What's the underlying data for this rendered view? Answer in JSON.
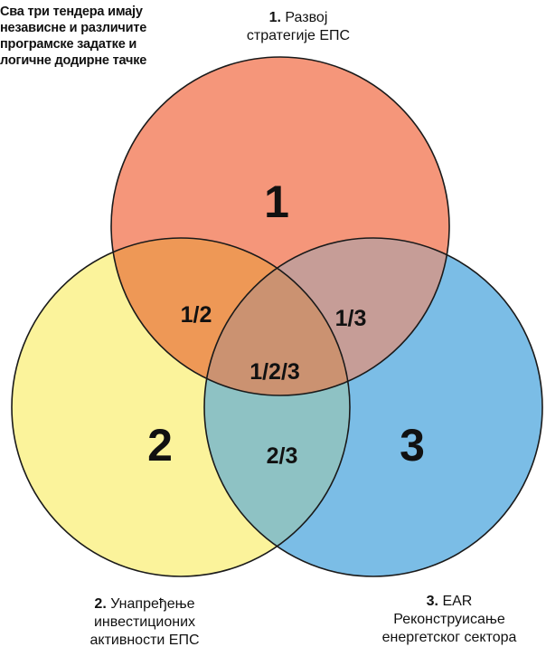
{
  "note": {
    "lines": [
      "Сва три тендера имају",
      "независне и различите",
      "програмске задатке и",
      "логичне додирне тачке"
    ]
  },
  "captions": {
    "c1": {
      "num": "1.",
      "line1": "Развој",
      "line2": "стратегије ЕПС"
    },
    "c2": {
      "num": "2.",
      "line1": "Унапређење",
      "line2": "инвестиционих",
      "line3": "активности ЕПС"
    },
    "c3": {
      "num": "3.",
      "line1": "EAR",
      "line2": "Реконструисање",
      "line3": "енергетског сектора"
    }
  },
  "regions": {
    "r1": "1",
    "r2": "2",
    "r3": "3",
    "r12": "1/2",
    "r13": "1/3",
    "r23": "2/3",
    "r123": "1/2/3"
  },
  "colors": {
    "circle1": "#f5967a",
    "circle2": "#fbf39b",
    "circle3": "#7bbde6",
    "overlap12": "#ee9856",
    "overlap13": "#c69d97",
    "overlap23": "#8ec2c4",
    "overlap123": "#cb9271",
    "outline": "#1a1a1a"
  }
}
